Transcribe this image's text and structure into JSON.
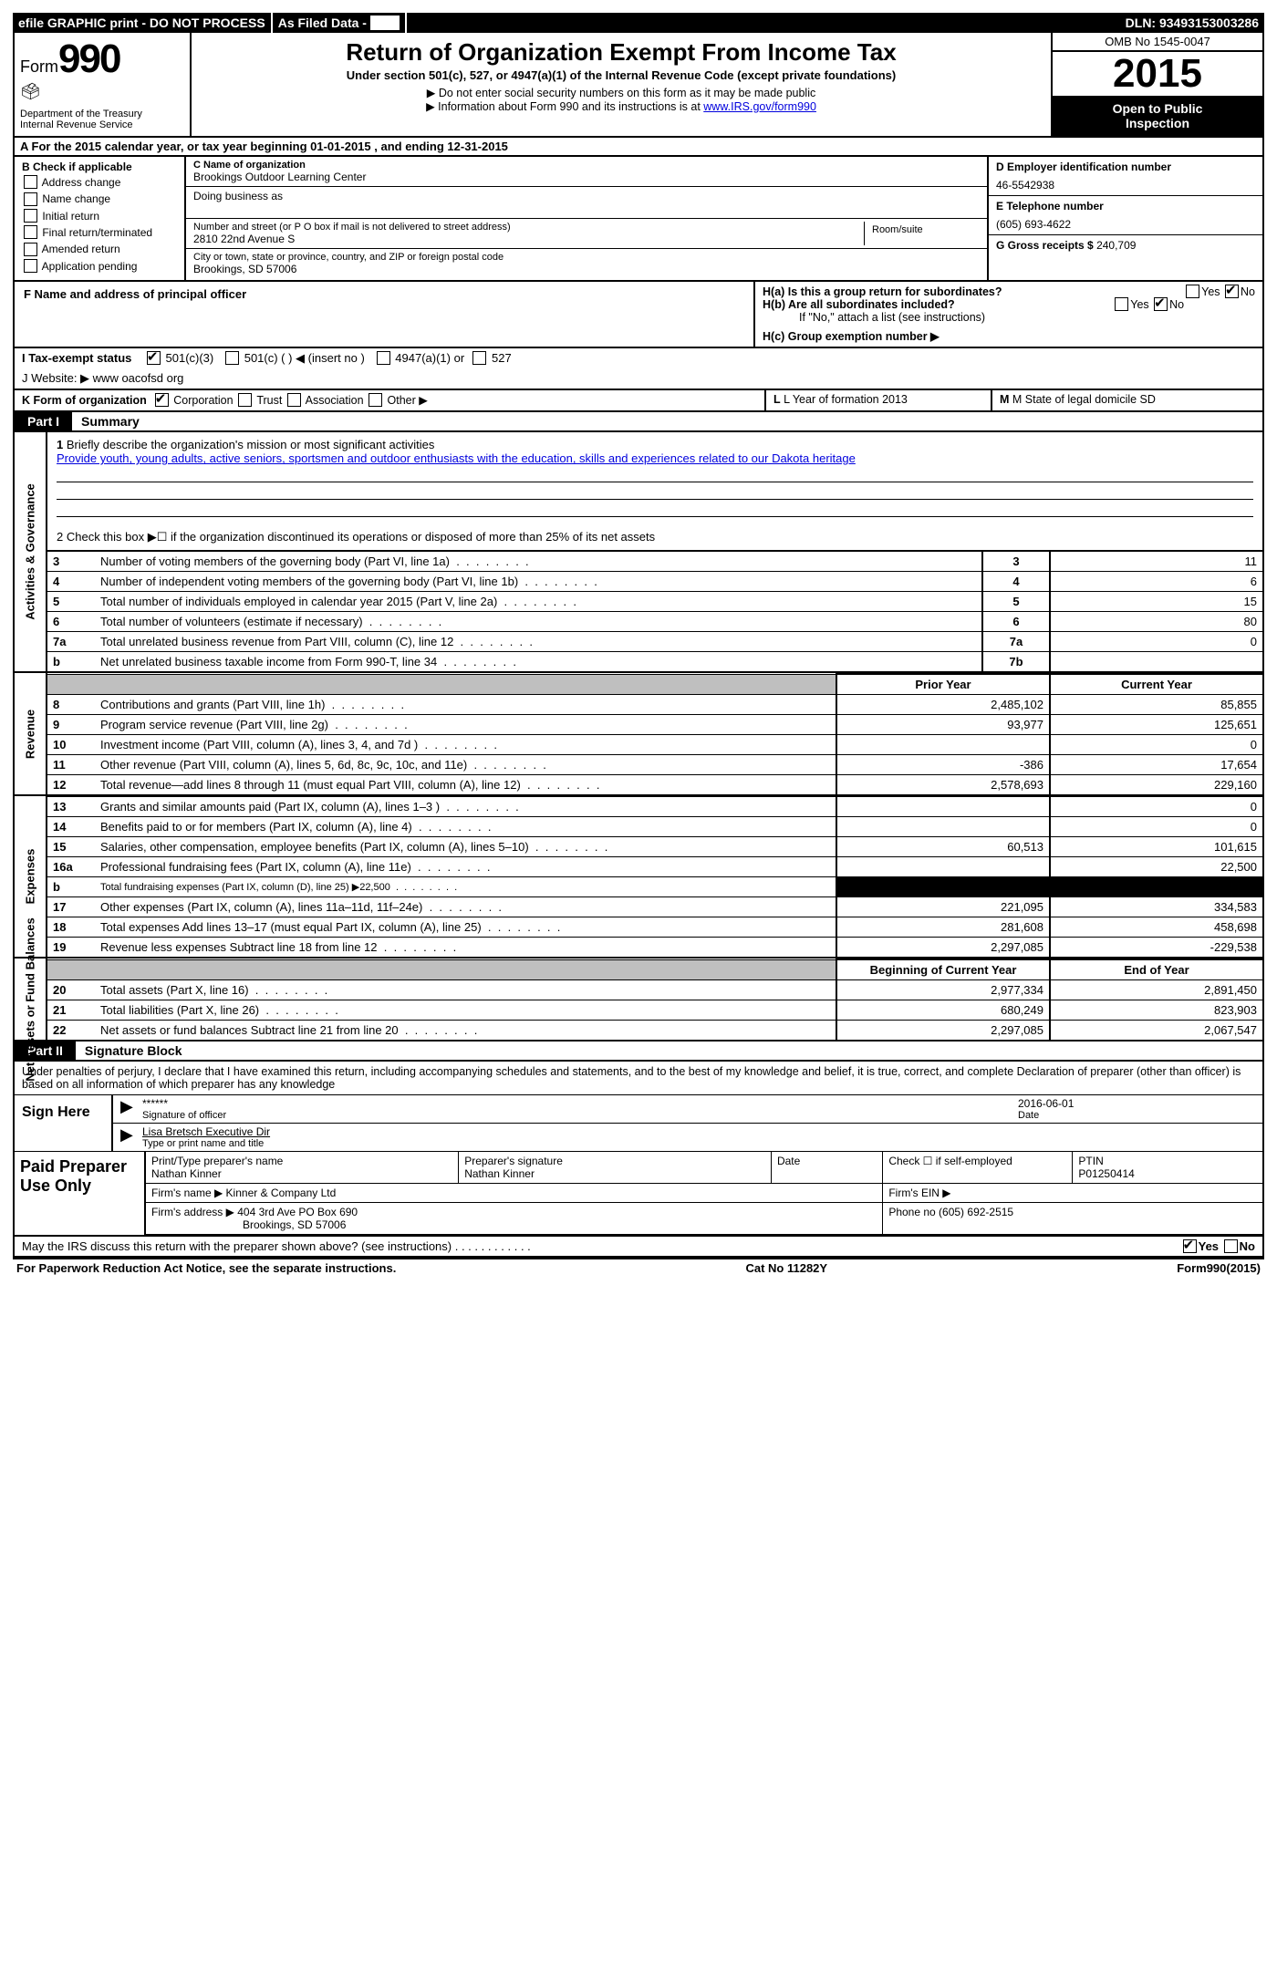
{
  "top_bar": {
    "efile": "efile GRAPHIC print - DO NOT PROCESS",
    "asfiled": "As Filed Data -",
    "dln_label": "DLN:",
    "dln": "93493153003286"
  },
  "form_box": {
    "form_word": "Form",
    "form_no": "990",
    "dept1": "Department of the Treasury",
    "dept2": "Internal Revenue Service",
    "title": "Return of Organization Exempt From Income Tax",
    "sub": "Under section 501(c), 527, or 4947(a)(1) of the Internal Revenue Code (except private foundations)",
    "note1": "▶ Do not enter social security numbers on this form as it may be made public",
    "note2_pre": "▶ Information about Form 990 and its instructions is at ",
    "note2_link": "www.IRS.gov/form990",
    "omb": "OMB No 1545-0047",
    "year": "2015",
    "otp1": "Open to Public",
    "otp2": "Inspection"
  },
  "row_a": "A  For the 2015 calendar year, or tax year beginning 01-01-2015    , and ending 12-31-2015",
  "col_b": {
    "hdr": "B Check if applicable",
    "items": [
      "Address change",
      "Name change",
      "Initial return",
      "Final return/terminated",
      "Amended return",
      "Application pending"
    ]
  },
  "col_c": {
    "name_lab": "C Name of organization",
    "name": "Brookings Outdoor Learning Center",
    "dba_lab": "Doing business as",
    "addr_lab": "Number and street (or P O  box if mail is not delivered to street address)",
    "addr": "2810 22nd Avenue S",
    "room_lab": "Room/suite",
    "city_lab": "City or town, state or province, country, and ZIP or foreign postal code",
    "city": "Brookings, SD  57006"
  },
  "col_d": {
    "d_lab": "D Employer identification number",
    "ein": "46-5542938",
    "e_lab": "E Telephone number",
    "phone": "(605) 693-4622",
    "g_lab": "G Gross receipts $",
    "g_val": "240,709"
  },
  "f_block": "F    Name and address of principal officer",
  "h_block": {
    "ha": "H(a)  Is this a group return for subordinates?",
    "hb": "H(b)  Are all subordinates included?",
    "hnote": "If \"No,\" attach a list  (see instructions)",
    "hc": "H(c)   Group exemption number ▶"
  },
  "row_i": "I   Tax-exempt status",
  "row_i_opts": {
    "a": "501(c)(3)",
    "b": "501(c) (  ) ◀ (insert no )",
    "c": "4947(a)(1) or",
    "d": "527"
  },
  "row_j": "J  Website: ▶   www oacofsd org",
  "row_k": {
    "k": "K Form of organization",
    "opts": [
      "Corporation",
      "Trust",
      "Association",
      "Other ▶"
    ],
    "l": "L Year of formation 2013",
    "m": "M State of legal domicile  SD"
  },
  "part1": "Part I",
  "part1_t": "Summary",
  "mission": {
    "num": "1",
    "lab": "Briefly describe the organization's mission or most significant activities",
    "text": "Provide youth, young adults, active seniors, sportsmen and outdoor enthusiasts with the education, skills and experiences related to our Dakota heritage",
    "line2": "2  Check this box ▶☐ if the organization discontinued its operations or disposed of more than 25% of its net assets"
  },
  "gov_rows": [
    {
      "n": "3",
      "d": "Number of voting members of the governing body (Part VI, line 1a)",
      "b": "3",
      "v": "11"
    },
    {
      "n": "4",
      "d": "Number of independent voting members of the governing body (Part VI, line 1b)",
      "b": "4",
      "v": "6"
    },
    {
      "n": "5",
      "d": "Total number of individuals employed in calendar year 2015 (Part V, line 2a)",
      "b": "5",
      "v": "15"
    },
    {
      "n": "6",
      "d": "Total number of volunteers (estimate if necessary)",
      "b": "6",
      "v": "80"
    },
    {
      "n": "7a",
      "d": "Total unrelated business revenue from Part VIII, column (C), line 12",
      "b": "7a",
      "v": "0"
    },
    {
      "n": "b",
      "d": "Net unrelated business taxable income from Form 990-T, line 34",
      "b": "7b",
      "v": ""
    }
  ],
  "py_hdr": "Prior Year",
  "cy_hdr": "Current Year",
  "rev_rows": [
    {
      "n": "8",
      "d": "Contributions and grants (Part VIII, line 1h)",
      "py": "2,485,102",
      "cy": "85,855"
    },
    {
      "n": "9",
      "d": "Program service revenue (Part VIII, line 2g)",
      "py": "93,977",
      "cy": "125,651"
    },
    {
      "n": "10",
      "d": "Investment income (Part VIII, column (A), lines 3, 4, and 7d )",
      "py": "",
      "cy": "0"
    },
    {
      "n": "11",
      "d": "Other revenue (Part VIII, column (A), lines 5, 6d, 8c, 9c, 10c, and 11e)",
      "py": "-386",
      "cy": "17,654"
    },
    {
      "n": "12",
      "d": "Total revenue—add lines 8 through 11 (must equal Part VIII, column (A), line 12)",
      "py": "2,578,693",
      "cy": "229,160"
    }
  ],
  "exp_rows": [
    {
      "n": "13",
      "d": "Grants and similar amounts paid (Part IX, column (A), lines 1–3 )",
      "py": "",
      "cy": "0"
    },
    {
      "n": "14",
      "d": "Benefits paid to or for members (Part IX, column (A), line 4)",
      "py": "",
      "cy": "0"
    },
    {
      "n": "15",
      "d": "Salaries, other compensation, employee benefits (Part IX, column (A), lines 5–10)",
      "py": "60,513",
      "cy": "101,615"
    },
    {
      "n": "16a",
      "d": "Professional fundraising fees (Part IX, column (A), line 11e)",
      "py": "",
      "cy": "22,500"
    },
    {
      "n": "b",
      "d": "Total fundraising expenses (Part IX, column (D), line 25) ▶22,500",
      "py": "BLACK",
      "cy": "BLACK",
      "small": true
    },
    {
      "n": "17",
      "d": "Other expenses (Part IX, column (A), lines 11a–11d, 11f–24e)",
      "py": "221,095",
      "cy": "334,583"
    },
    {
      "n": "18",
      "d": "Total expenses  Add lines 13–17 (must equal Part IX, column (A), line 25)",
      "py": "281,608",
      "cy": "458,698"
    },
    {
      "n": "19",
      "d": "Revenue less expenses  Subtract line 18 from line 12",
      "py": "2,297,085",
      "cy": "-229,538"
    }
  ],
  "na_hdr1": "Beginning of Current Year",
  "na_hdr2": "End of Year",
  "na_rows": [
    {
      "n": "20",
      "d": "Total assets (Part X, line 16)",
      "py": "2,977,334",
      "cy": "2,891,450"
    },
    {
      "n": "21",
      "d": "Total liabilities (Part X, line 26)",
      "py": "680,249",
      "cy": "823,903"
    },
    {
      "n": "22",
      "d": "Net assets or fund balances  Subtract line 21 from line 20",
      "py": "2,297,085",
      "cy": "2,067,547"
    }
  ],
  "part2": "Part II",
  "part2_t": "Signature Block",
  "perjury": "Under penalties of perjury, I declare that I have examined this return, including accompanying schedules and statements, and to the best of my knowledge and belief, it is true, correct, and complete  Declaration of preparer (other than officer) is based on all information of which preparer has any knowledge",
  "sign": {
    "lbl": "Sign Here",
    "stars": "******",
    "sig_of": "Signature of officer",
    "date": "2016-06-01",
    "date_lbl": "Date",
    "name": "Lisa Bretsch  Executive Dir",
    "name_lbl": "Type or print name and title"
  },
  "prep": {
    "lbl": "Paid Preparer Use Only",
    "r1": {
      "a": "Print/Type preparer's name",
      "av": "Nathan Kinner",
      "b": "Preparer's signature",
      "bv": "Nathan Kinner",
      "c": "Date",
      "d": "Check ☐ if self-employed",
      "e": "PTIN",
      "ev": "P01250414"
    },
    "r2": {
      "a": "Firm's name     ▶",
      "av": "Kinner & Company Ltd",
      "b": "Firm's EIN ▶"
    },
    "r3": {
      "a": "Firm's address ▶",
      "av": "404 3rd Ave PO Box 690",
      "av2": "Brookings, SD  57006",
      "b": "Phone no  (605) 692-2515"
    }
  },
  "discuss": "May the IRS discuss this return with the preparer shown above? (see instructions)   .   .   .   .   .   .   .   .   .   .   .   .",
  "discuss_yn": {
    "yes": "Yes",
    "no": "No"
  },
  "footer": {
    "l": "For Paperwork Reduction Act Notice, see the separate instructions.",
    "m": "Cat No  11282Y",
    "r": "Form990(2015)"
  },
  "sidelabels": {
    "gov": "Activities & Governance",
    "rev": "Revenue",
    "exp": "Expenses",
    "na": "Net Assets or Fund Balances"
  }
}
